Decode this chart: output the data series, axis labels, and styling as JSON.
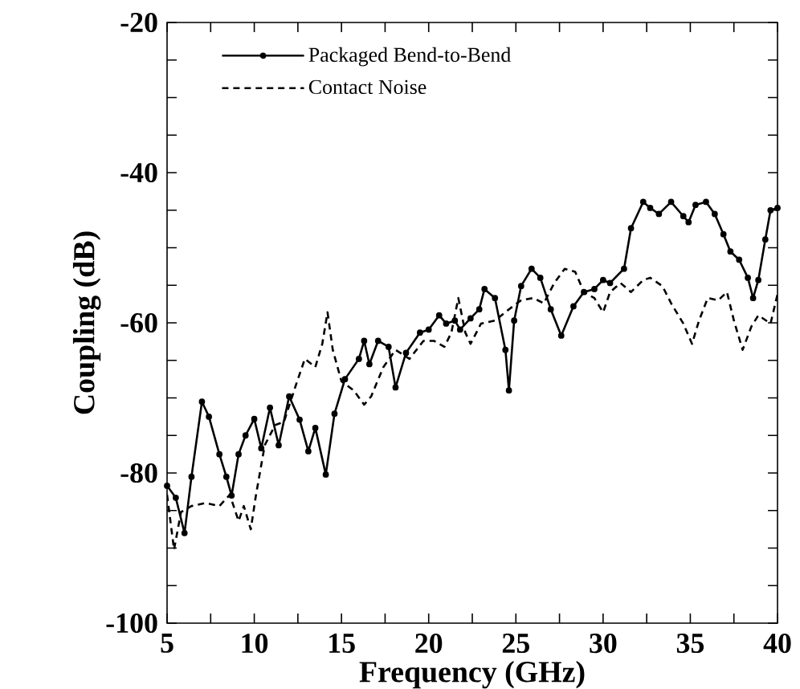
{
  "chart_data": {
    "type": "line",
    "xlabel": "Frequency  (GHz)",
    "ylabel": "Coupling (dB)",
    "xlim": [
      5,
      40
    ],
    "ylim": [
      -100,
      -20
    ],
    "xticks": [
      5,
      {
        "value": 7.5,
        "label": null
      },
      10,
      {
        "value": 12.5,
        "label": null
      },
      15,
      {
        "value": 17.5,
        "label": null
      },
      20,
      {
        "value": 22.5,
        "label": null
      },
      25,
      {
        "value": 27.5,
        "label": null
      },
      30,
      {
        "value": 32.5,
        "label": null
      },
      35,
      {
        "value": 37.5,
        "label": null
      },
      40
    ],
    "yticks": [
      -100,
      {
        "value": -95,
        "label": null
      },
      {
        "value": -90,
        "label": null
      },
      {
        "value": -85,
        "label": null
      },
      -80,
      {
        "value": -75,
        "label": null
      },
      {
        "value": -70,
        "label": null
      },
      {
        "value": -65,
        "label": null
      },
      -60,
      {
        "value": -55,
        "label": null
      },
      {
        "value": -50,
        "label": null
      },
      {
        "value": -45,
        "label": null
      },
      -40,
      {
        "value": -35,
        "label": null
      },
      {
        "value": -30,
        "label": null
      },
      {
        "value": -25,
        "label": null
      },
      -20
    ],
    "grid": false,
    "legend": "top left",
    "series": [
      {
        "name": "Packaged Bend-to-Bend",
        "color": "#000000",
        "line_style": "solid",
        "marker": "circle",
        "x": [
          5,
          5.5,
          6.0,
          6.4,
          7.0,
          7.4,
          8.0,
          8.4,
          8.7,
          9.1,
          9.5,
          10.0,
          10.4,
          10.9,
          11.4,
          12.0,
          12.6,
          13.1,
          13.5,
          14.1,
          14.6,
          15.2,
          16.0,
          16.3,
          16.6,
          17.1,
          17.7,
          18.1,
          18.7,
          19.5,
          20.0,
          20.6,
          21.0,
          21.5,
          21.8,
          22.4,
          22.9,
          23.2,
          23.8,
          24.4,
          24.6,
          24.9,
          25.3,
          25.9,
          26.4,
          27.0,
          27.6,
          28.3,
          28.9,
          29.5,
          30.0,
          30.4,
          31.2,
          31.6,
          32.3,
          32.7,
          33.2,
          33.9,
          34.6,
          34.9,
          35.3,
          35.9,
          36.4,
          36.9,
          37.3,
          37.8,
          38.3,
          38.6,
          38.9,
          39.3,
          39.6,
          40.0
        ],
        "values": [
          -81.7,
          -83.3,
          -88,
          -80.5,
          -70.5,
          -72.5,
          -77.5,
          -80.5,
          -83,
          -77.5,
          -75,
          -72.8,
          -76.7,
          -71.3,
          -76.3,
          -69.8,
          -72.9,
          -77.1,
          -74,
          -80.2,
          -72.1,
          -67.5,
          -64.8,
          -62.4,
          -65.5,
          -62.4,
          -63.2,
          -68.6,
          -64,
          -61.3,
          -60.9,
          -59,
          -60.1,
          -59.7,
          -60.9,
          -59.4,
          -58.2,
          -55.5,
          -56.7,
          -63.6,
          -69,
          -59.7,
          -55.1,
          -52.8,
          -54,
          -58.2,
          -61.7,
          -57.8,
          -55.9,
          -55.5,
          -54.3,
          -54.7,
          -52.8,
          -47.4,
          -43.9,
          -44.7,
          -45.5,
          -43.9,
          -45.8,
          -46.6,
          -44.3,
          -43.9,
          -45.5,
          -48.2,
          -50.5,
          -51.6,
          -54,
          -56.7,
          -54.3,
          -48.9,
          -45,
          -44.7
        ]
      },
      {
        "name": "Contact Noise",
        "color": "#000000",
        "line_style": "dashed",
        "marker": "none",
        "x": [
          5,
          5.4,
          5.8,
          6.4,
          7.2,
          8.0,
          8.6,
          9.1,
          9.4,
          9.8,
          10.1,
          10.6,
          11.2,
          11.7,
          12.4,
          12.9,
          13.5,
          13.9,
          14.2,
          14.5,
          15.0,
          15.7,
          16.3,
          16.7,
          17.4,
          18.1,
          18.9,
          19.7,
          20.3,
          20.9,
          21.3,
          21.7,
          22.1,
          22.4,
          23.0,
          23.8,
          24.6,
          25.3,
          26.0,
          26.6,
          27.2,
          27.8,
          28.4,
          28.9,
          29.5,
          30.0,
          30.4,
          31.0,
          31.6,
          32.3,
          32.7,
          33.4,
          33.9,
          34.6,
          35.1,
          35.5,
          36.0,
          36.6,
          37.1,
          37.5,
          38.0,
          38.5,
          38.9,
          39.6,
          40.0
        ],
        "values": [
          -82.9,
          -90.2,
          -85.2,
          -84.4,
          -84,
          -84.4,
          -82.9,
          -86.4,
          -84.4,
          -87.5,
          -82.9,
          -76.3,
          -73.6,
          -73.2,
          -68.2,
          -64.8,
          -65.9,
          -62.8,
          -58.6,
          -63.6,
          -67.8,
          -69,
          -70.9,
          -69.8,
          -65.9,
          -63.6,
          -64.8,
          -62.4,
          -62.4,
          -63.2,
          -61.3,
          -56.7,
          -61.3,
          -62.8,
          -60.1,
          -59.7,
          -58.2,
          -57,
          -56.7,
          -57.4,
          -54.7,
          -52.8,
          -53.2,
          -55.9,
          -56.7,
          -58.6,
          -55.9,
          -54.7,
          -55.9,
          -54.3,
          -54,
          -55.1,
          -57.4,
          -60.1,
          -62.8,
          -59.7,
          -56.7,
          -57,
          -55.9,
          -59.7,
          -63.6,
          -60.5,
          -59,
          -60.1,
          -56.2
        ]
      }
    ]
  }
}
